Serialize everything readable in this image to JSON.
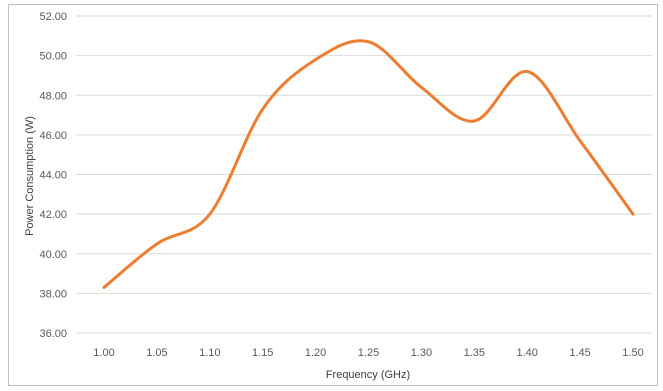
{
  "chart_data": {
    "type": "line",
    "title": "",
    "xlabel": "Frequency (GHz)",
    "ylabel": "Power Consumption (W)",
    "x": [
      1.0,
      1.05,
      1.1,
      1.15,
      1.2,
      1.25,
      1.3,
      1.35,
      1.4,
      1.45,
      1.5
    ],
    "x_tick_labels": [
      "1.00",
      "1.05",
      "1.10",
      "1.15",
      "1.20",
      "1.25",
      "1.30",
      "1.35",
      "1.40",
      "1.45",
      "1.50"
    ],
    "y_tick_labels": [
      "36.00",
      "38.00",
      "40.00",
      "42.00",
      "44.00",
      "46.00",
      "48.00",
      "50.00",
      "52.00"
    ],
    "y_ticks": [
      36,
      38,
      40,
      42,
      44,
      46,
      48,
      50,
      52
    ],
    "ylim": [
      36,
      52
    ],
    "xlim": [
      1.0,
      1.5
    ],
    "grid": true,
    "legend": "none",
    "series": [
      {
        "color": "#ed7d31",
        "values": [
          38.3,
          40.5,
          42.0,
          47.3,
          49.8,
          50.7,
          48.4,
          46.7,
          49.2,
          45.7,
          42.0
        ]
      }
    ]
  }
}
